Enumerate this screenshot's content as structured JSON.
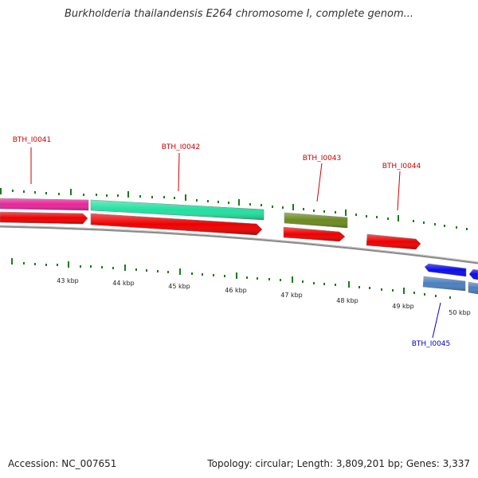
{
  "title": "Burkholderia thailandensis E264 chromosome I, complete genom...",
  "footer": {
    "accession": "Accession: NC_007651",
    "summary": "Topology: circular; Length: 3,809,201 bp; Genes: 3,337"
  },
  "colors": {
    "backbone": "#8a8a8a",
    "tick": "#1a7a1a",
    "label_forward": "#cc0000",
    "label_reverse": "#0000cc"
  },
  "kbp_labels": [
    "43 kbp",
    "44 kbp",
    "45 kbp",
    "46 kbp",
    "47 kbp",
    "48 kbp",
    "49 kbp",
    "50 kbp"
  ],
  "gene_labels": [
    {
      "text": "BTH_I0041",
      "strand": "forward"
    },
    {
      "text": "BTH_I0042",
      "strand": "forward"
    },
    {
      "text": "BTH_I0043",
      "strand": "forward"
    },
    {
      "text": "BTH_I0044",
      "strand": "forward"
    },
    {
      "text": "BTH_I0045",
      "strand": "reverse"
    }
  ],
  "features": [
    {
      "name": "feature-magenta-upper",
      "color": "#e8259a"
    },
    {
      "name": "feature-teal-upper",
      "color": "#22e0a0"
    },
    {
      "name": "feature-olive-upper",
      "color": "#6b8a1e"
    },
    {
      "name": "feature-red-1",
      "color": "#ee0000"
    },
    {
      "name": "feature-red-2",
      "color": "#ee0000"
    },
    {
      "name": "feature-red-3",
      "color": "#ee0000"
    },
    {
      "name": "feature-red-4",
      "color": "#ee0000"
    },
    {
      "name": "feature-blue-1",
      "color": "#0a0aee"
    },
    {
      "name": "feature-blue-2",
      "color": "#0a0aee"
    },
    {
      "name": "feature-steelblue-1",
      "color": "#4a7fbf"
    },
    {
      "name": "feature-steelblue-2",
      "color": "#4a7fbf"
    }
  ]
}
